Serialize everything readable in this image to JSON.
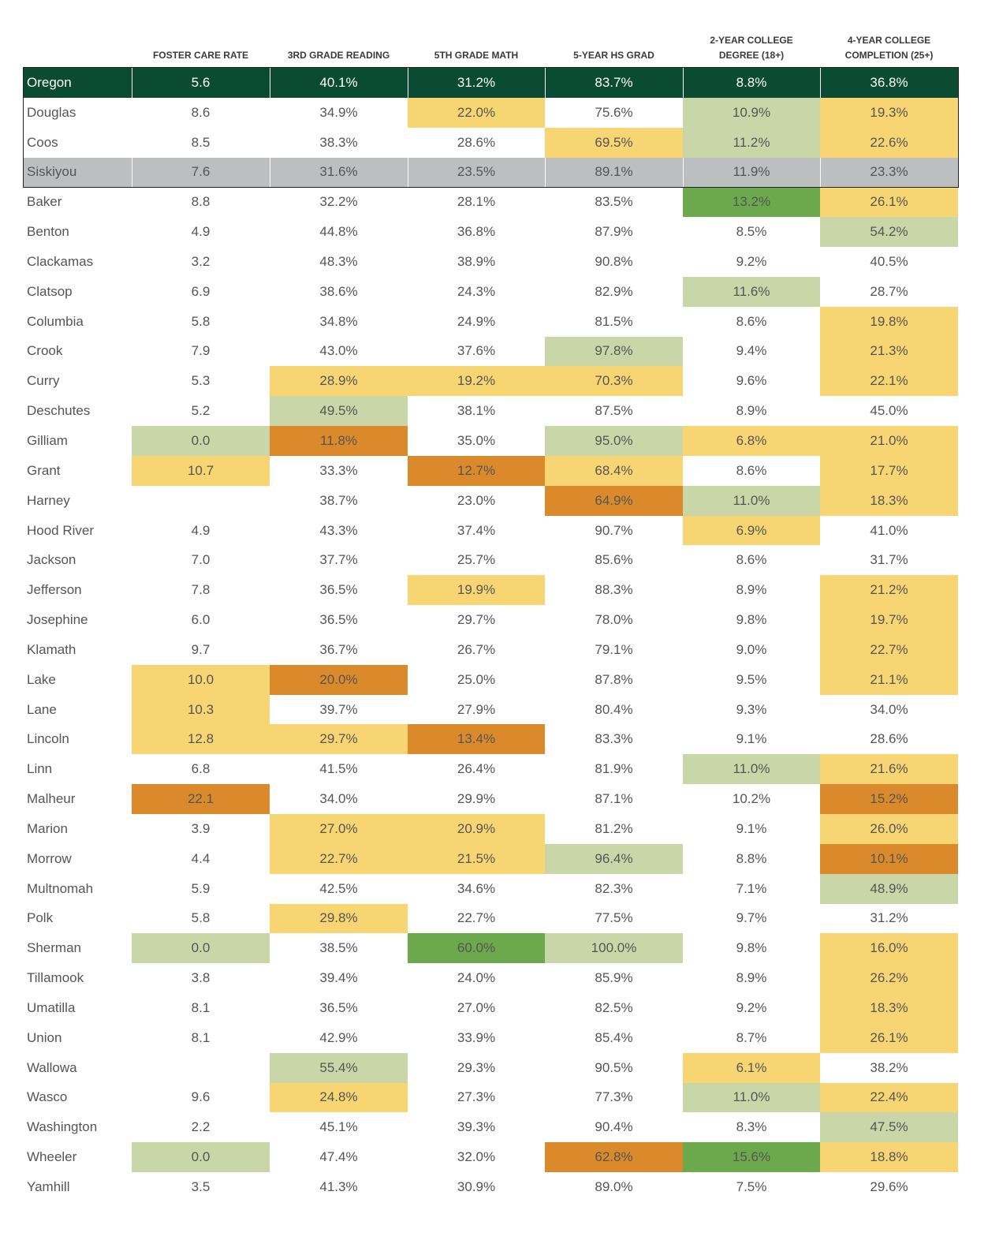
{
  "table": {
    "header": [
      "FOSTER CARE RATE",
      "3RD GRADE READING",
      "5TH GRADE MATH",
      "5-YEAR HS GRAD",
      "2-YEAR COLLEGE DEGREE (18+)",
      "4-YEAR COLLEGE COMPLETION (25+)"
    ],
    "rows": [
      [
        "Oregon",
        "5.6",
        "40.1%",
        "31.2%",
        "83.7%",
        "8.8%",
        "36.8%"
      ],
      [
        "Douglas",
        "8.6",
        "34.9%",
        "22.0%",
        "75.6%",
        "10.9%",
        "19.3%"
      ],
      [
        "Coos",
        "8.5",
        "38.3%",
        "28.6%",
        "69.5%",
        "11.2%",
        "22.6%"
      ],
      [
        "Siskiyou",
        "7.6",
        "31.6%",
        "23.5%",
        "89.1%",
        "11.9%",
        "23.3%"
      ],
      [
        "Baker",
        "8.8",
        "32.2%",
        "28.1%",
        "83.5%",
        "13.2%",
        "26.1%"
      ],
      [
        "Benton",
        "4.9",
        "44.8%",
        "36.8%",
        "87.9%",
        "8.5%",
        "54.2%"
      ],
      [
        "Clackamas",
        "3.2",
        "48.3%",
        "38.9%",
        "90.8%",
        "9.2%",
        "40.5%"
      ],
      [
        "Clatsop",
        "6.9",
        "38.6%",
        "24.3%",
        "82.9%",
        "11.6%",
        "28.7%"
      ],
      [
        "Columbia",
        "5.8",
        "34.8%",
        "24.9%",
        "81.5%",
        "8.6%",
        "19.8%"
      ],
      [
        "Crook",
        "7.9",
        "43.0%",
        "37.6%",
        "97.8%",
        "9.4%",
        "21.3%"
      ],
      [
        "Curry",
        "5.3",
        "28.9%",
        "19.2%",
        "70.3%",
        "9.6%",
        "22.1%"
      ],
      [
        "Deschutes",
        "5.2",
        "49.5%",
        "38.1%",
        "87.5%",
        "8.9%",
        "45.0%"
      ],
      [
        "Gilliam",
        "0.0",
        "11.8%",
        "35.0%",
        "95.0%",
        "6.8%",
        "21.0%"
      ],
      [
        "Grant",
        "10.7",
        "33.3%",
        "12.7%",
        "68.4%",
        "8.6%",
        "17.7%"
      ],
      [
        "Harney",
        null,
        "38.7%",
        "23.0%",
        "64.9%",
        "11.0%",
        "18.3%"
      ],
      [
        "Hood River",
        "4.9",
        "43.3%",
        "37.4%",
        "90.7%",
        "6.9%",
        "41.0%"
      ],
      [
        "Jackson",
        "7.0",
        "37.7%",
        "25.7%",
        "85.6%",
        "8.6%",
        "31.7%"
      ],
      [
        "Jefferson",
        "7.8",
        "36.5%",
        "19.9%",
        "88.3%",
        "8.9%",
        "21.2%"
      ],
      [
        "Josephine",
        "6.0",
        "36.5%",
        "29.7%",
        "78.0%",
        "9.8%",
        "19.7%"
      ],
      [
        "Klamath",
        "9.7",
        "36.7%",
        "26.7%",
        "79.1%",
        "9.0%",
        "22.7%"
      ],
      [
        "Lake",
        "10.0",
        "20.0%",
        "25.0%",
        "87.8%",
        "9.5%",
        "21.1%"
      ],
      [
        "Lane",
        "10.3",
        "39.7%",
        "27.9%",
        "80.4%",
        "9.3%",
        "34.0%"
      ],
      [
        "Lincoln",
        "12.8",
        "29.7%",
        "13.4%",
        "83.3%",
        "9.1%",
        "28.6%"
      ],
      [
        "Linn",
        "6.8",
        "41.5%",
        "26.4%",
        "81.9%",
        "11.0%",
        "21.6%"
      ],
      [
        "Malheur",
        "22.1",
        "34.0%",
        "29.9%",
        "87.1%",
        "10.2%",
        "15.2%"
      ],
      [
        "Marion",
        "3.9",
        "27.0%",
        "20.9%",
        "81.2%",
        "9.1%",
        "26.0%"
      ],
      [
        "Morrow",
        "4.4",
        "22.7%",
        "21.5%",
        "96.4%",
        "8.8%",
        "10.1%"
      ],
      [
        "Multnomah",
        "5.9",
        "42.5%",
        "34.6%",
        "82.3%",
        "7.1%",
        "48.9%"
      ],
      [
        "Polk",
        "5.8",
        "29.8%",
        "22.7%",
        "77.5%",
        "9.7%",
        "31.2%"
      ],
      [
        "Sherman",
        "0.0",
        "38.5%",
        "60.0%",
        "100.0%",
        "9.8%",
        "16.0%"
      ],
      [
        "Tillamook",
        "3.8",
        "39.4%",
        "24.0%",
        "85.9%",
        "8.9%",
        "26.2%"
      ],
      [
        "Umatilla",
        "8.1",
        "36.5%",
        "27.0%",
        "82.5%",
        "9.2%",
        "18.3%"
      ],
      [
        "Union",
        "8.1",
        "42.9%",
        "33.9%",
        "85.4%",
        "8.7%",
        "26.1%"
      ],
      [
        "Wallowa",
        null,
        "55.4%",
        "29.3%",
        "90.5%",
        "6.1%",
        "38.2%"
      ],
      [
        "Wasco",
        "9.6",
        "24.8%",
        "27.3%",
        "77.3%",
        "11.0%",
        "22.4%"
      ],
      [
        "Washington",
        "2.2",
        "45.1%",
        "39.3%",
        "90.4%",
        "8.3%",
        "47.5%"
      ],
      [
        "Wheeler",
        "0.0",
        "47.4%",
        "32.0%",
        "62.8%",
        "15.6%",
        "18.8%"
      ],
      [
        "Yamhill",
        "3.5",
        "41.3%",
        "30.9%",
        "89.0%",
        "7.5%",
        "29.6%"
      ]
    ],
    "fills": [
      [
        "#0c4b33",
        "#0c4b33",
        "#0c4b33",
        "#0c4b33",
        "#0c4b33",
        "#0c4b33",
        "#0c4b33"
      ],
      [
        null,
        null,
        null,
        "#f8d573",
        null,
        "#c9d7a8",
        "#f8d573"
      ],
      [
        null,
        null,
        null,
        null,
        "#f8d573",
        "#c9d7a8",
        "#f8d573"
      ],
      [
        "#bdbec0",
        "#bdbec0",
        "#bdbec0",
        "#bdbec0",
        "#bdbec0",
        "#bdbec0",
        "#bdbec0"
      ],
      [
        null,
        null,
        null,
        null,
        null,
        "#6ca84c",
        "#f8d573"
      ],
      [
        null,
        null,
        null,
        null,
        null,
        null,
        "#c9d7a8"
      ],
      [
        null,
        null,
        null,
        null,
        null,
        null,
        null
      ],
      [
        null,
        null,
        null,
        null,
        null,
        "#c9d7a8",
        null
      ],
      [
        null,
        null,
        null,
        null,
        null,
        null,
        "#f8d573"
      ],
      [
        null,
        null,
        null,
        null,
        "#c9d7a8",
        null,
        "#f8d573"
      ],
      [
        null,
        null,
        "#f8d573",
        "#f8d573",
        "#f8d573",
        null,
        "#f8d573"
      ],
      [
        null,
        null,
        "#c9d7a8",
        null,
        null,
        null,
        null
      ],
      [
        null,
        "#c9d7a8",
        "#db8a2b",
        null,
        "#c9d7a8",
        "#f8d573",
        "#f8d573"
      ],
      [
        null,
        "#f8d573",
        null,
        "#db8a2b",
        "#f8d573",
        null,
        "#f8d573"
      ],
      [
        null,
        null,
        null,
        null,
        "#db8a2b",
        "#c9d7a8",
        "#f8d573"
      ],
      [
        null,
        null,
        null,
        null,
        null,
        "#f8d573",
        null
      ],
      [
        null,
        null,
        null,
        null,
        null,
        null,
        null
      ],
      [
        null,
        null,
        null,
        "#f8d573",
        null,
        null,
        "#f8d573"
      ],
      [
        null,
        null,
        null,
        null,
        null,
        null,
        "#f8d573"
      ],
      [
        null,
        null,
        null,
        null,
        null,
        null,
        "#f8d573"
      ],
      [
        null,
        "#f8d573",
        "#db8a2b",
        null,
        null,
        null,
        "#f8d573"
      ],
      [
        null,
        "#f8d573",
        null,
        null,
        null,
        null,
        null
      ],
      [
        null,
        "#f8d573",
        "#f8d573",
        "#db8a2b",
        null,
        null,
        null
      ],
      [
        null,
        null,
        null,
        null,
        null,
        "#c9d7a8",
        "#f8d573"
      ],
      [
        null,
        "#db8a2b",
        null,
        null,
        null,
        null,
        "#db8a2b"
      ],
      [
        null,
        null,
        "#f8d573",
        "#f8d573",
        null,
        null,
        "#f8d573"
      ],
      [
        null,
        null,
        "#f8d573",
        "#f8d573",
        "#c9d7a8",
        null,
        "#db8a2b"
      ],
      [
        null,
        null,
        null,
        null,
        null,
        null,
        "#c9d7a8"
      ],
      [
        null,
        null,
        "#f8d573",
        null,
        null,
        null,
        null
      ],
      [
        null,
        "#c9d7a8",
        null,
        "#6ca84c",
        "#c9d7a8",
        null,
        "#f8d573"
      ],
      [
        null,
        null,
        null,
        null,
        null,
        null,
        "#f8d573"
      ],
      [
        null,
        null,
        null,
        null,
        null,
        null,
        "#f8d573"
      ],
      [
        null,
        null,
        null,
        null,
        null,
        null,
        "#f8d573"
      ],
      [
        null,
        null,
        "#c9d7a8",
        null,
        null,
        "#f8d573",
        null
      ],
      [
        null,
        null,
        "#f8d573",
        null,
        null,
        "#c9d7a8",
        "#f8d573"
      ],
      [
        null,
        null,
        null,
        null,
        null,
        null,
        "#c9d7a8"
      ],
      [
        null,
        "#c9d7a8",
        null,
        null,
        "#db8a2b",
        "#6ca84c",
        "#f8d573"
      ],
      [
        null,
        null,
        null,
        null,
        null,
        null,
        null
      ]
    ]
  }
}
